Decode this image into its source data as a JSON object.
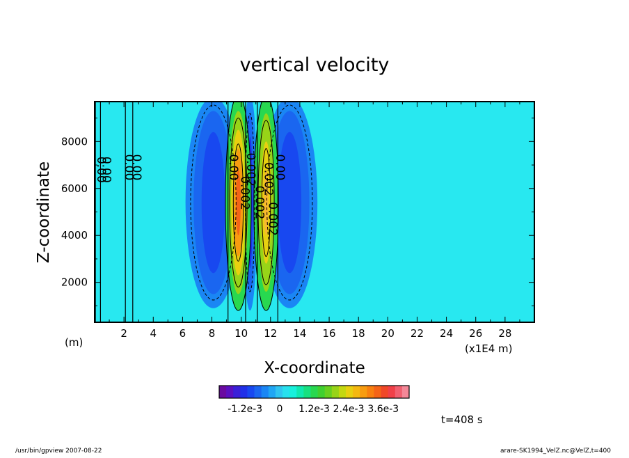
{
  "chart_data": {
    "type": "heatmap",
    "title": "vertical velocity",
    "xlabel": "X-coordinate",
    "ylabel": "Z-coordinate",
    "x_unit_left": "(m)",
    "x_unit_right": "(x1E4 m)",
    "xlim": [
      0,
      30
    ],
    "ylim": [
      300,
      9700
    ],
    "x_ticks": [
      "2",
      "4",
      "6",
      "8",
      "10",
      "12",
      "14",
      "16",
      "18",
      "20",
      "22",
      "24",
      "26",
      "28"
    ],
    "y_ticks": [
      "2000",
      "4000",
      "6000",
      "8000"
    ],
    "colorbar": {
      "vmin": -0.0021,
      "vmax": 0.0045,
      "labels": [
        "-1.2e-3",
        "0",
        "1.2e-3",
        "2.4e-3",
        "3.6e-3"
      ],
      "colors": [
        "#6a0aa0",
        "#5a10c0",
        "#3a20d8",
        "#2030e8",
        "#1848f0",
        "#1a66f0",
        "#1a86f4",
        "#20a6f4",
        "#30c4f0",
        "#28e0ee",
        "#18f0dc",
        "#10e8b0",
        "#18e080",
        "#28d850",
        "#40d030",
        "#68d020",
        "#98d418",
        "#c4d810",
        "#e8d010",
        "#f4b810",
        "#f89c10",
        "#f88010",
        "#f46418",
        "#f04828",
        "#f04048",
        "#f06070",
        "#f48898"
      ]
    },
    "contour_labels": [
      "0.00",
      "0.00",
      "0.00",
      "0.00",
      "0.00",
      "0.00",
      "0.002",
      "0.002",
      "0.002",
      "0.002",
      "0.002"
    ],
    "annotation_time": "t=408 s"
  },
  "footer": {
    "left": "/usr/bin/gpview   2007-08-22",
    "right": "arare-SK1994_VelZ.nc@VelZ,t=400"
  }
}
